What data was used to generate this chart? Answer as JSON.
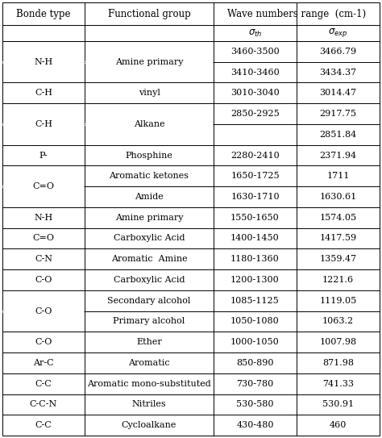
{
  "col_headers_row1": [
    "Bonde type",
    "Functional group",
    "Wave numbers range  (cm-1)"
  ],
  "col_headers_row2": [
    "",
    "",
    "σth",
    "σexp"
  ],
  "rows": [
    {
      "bonde": "N-H",
      "functional": "Amine primary",
      "sigma_th": "3460-3500",
      "sigma_exp": "3466.79",
      "bonde_span": 2,
      "func_span": 2
    },
    {
      "bonde": "",
      "functional": "",
      "sigma_th": "3410-3460",
      "sigma_exp": "3434.37",
      "bonde_span": 0,
      "func_span": 0
    },
    {
      "bonde": "C-H",
      "functional": "vinyl",
      "sigma_th": "3010-3040",
      "sigma_exp": "3014.47",
      "bonde_span": 1,
      "func_span": 1
    },
    {
      "bonde": "C-H",
      "functional": "Alkane",
      "sigma_th": "2850-2925",
      "sigma_exp": "2917.75",
      "bonde_span": 2,
      "func_span": 2
    },
    {
      "bonde": "",
      "functional": "",
      "sigma_th": "",
      "sigma_exp": "2851.84",
      "bonde_span": 0,
      "func_span": 0
    },
    {
      "bonde": "P-",
      "functional": "Phosphine",
      "sigma_th": "2280-2410",
      "sigma_exp": "2371.94",
      "bonde_span": 1,
      "func_span": 1
    },
    {
      "bonde": "C=O",
      "functional": "Aromatic ketones",
      "sigma_th": "1650-1725",
      "sigma_exp": "1711",
      "bonde_span": 2,
      "func_span": 1
    },
    {
      "bonde": "",
      "functional": "Amide",
      "sigma_th": "1630-1710",
      "sigma_exp": "1630.61",
      "bonde_span": 0,
      "func_span": 1
    },
    {
      "bonde": "N-H",
      "functional": "Amine primary",
      "sigma_th": "1550-1650",
      "sigma_exp": "1574.05",
      "bonde_span": 1,
      "func_span": 1
    },
    {
      "bonde": "C=O",
      "functional": "Carboxylic Acid",
      "sigma_th": "1400-1450",
      "sigma_exp": "1417.59",
      "bonde_span": 1,
      "func_span": 1
    },
    {
      "bonde": "C-N",
      "functional": "Aromatic  Amine",
      "sigma_th": "1180-1360",
      "sigma_exp": "1359.47",
      "bonde_span": 1,
      "func_span": 1
    },
    {
      "bonde": "C-O",
      "functional": "Carboxylic Acid",
      "sigma_th": "1200-1300",
      "sigma_exp": "1221.6",
      "bonde_span": 1,
      "func_span": 1
    },
    {
      "bonde": "C-O",
      "functional": "Secondary alcohol",
      "sigma_th": "1085-1125",
      "sigma_exp": "1119.05",
      "bonde_span": 2,
      "func_span": 1
    },
    {
      "bonde": "",
      "functional": "Primary alcohol",
      "sigma_th": "1050-1080",
      "sigma_exp": "1063.2",
      "bonde_span": 0,
      "func_span": 1
    },
    {
      "bonde": "C-O",
      "functional": "Ether",
      "sigma_th": "1000-1050",
      "sigma_exp": "1007.98",
      "bonde_span": 1,
      "func_span": 1
    },
    {
      "bonde": "Ar-C",
      "functional": "Aromatic",
      "sigma_th": "850-890",
      "sigma_exp": "871.98",
      "bonde_span": 1,
      "func_span": 1
    },
    {
      "bonde": "C-C",
      "functional": "Aromatic mono-substituted",
      "sigma_th": "730-780",
      "sigma_exp": "741.33",
      "bonde_span": 1,
      "func_span": 1
    },
    {
      "bonde": "C-C-N",
      "functional": "Nitriles",
      "sigma_th": "530-580",
      "sigma_exp": "530.91",
      "bonde_span": 1,
      "func_span": 1
    },
    {
      "bonde": "C-C",
      "functional": "Cycloalkane",
      "sigma_th": "430-480",
      "sigma_exp": "460",
      "bonde_span": 1,
      "func_span": 1
    }
  ],
  "bg_color": "#ffffff",
  "line_color": "#000000",
  "text_color": "#000000",
  "font_size": 8.0,
  "header_font_size": 8.5
}
